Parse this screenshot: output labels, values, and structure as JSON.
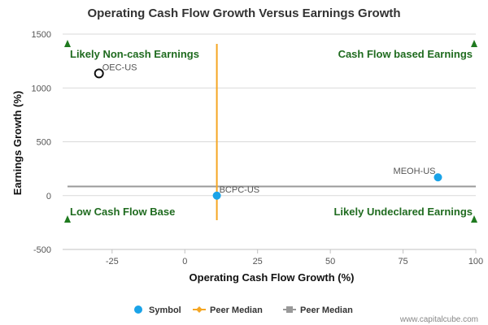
{
  "chart_data": {
    "type": "scatter",
    "title": "Operating Cash Flow Growth Versus Earnings Growth",
    "xlabel": "Operating Cash Flow Growth (%)",
    "ylabel": "Earnings Growth (%)",
    "xlim": [
      -42,
      100
    ],
    "ylim": [
      -500,
      1500
    ],
    "xticks": [
      -25,
      0,
      25,
      50,
      75,
      100
    ],
    "yticks": [
      -500,
      0,
      500,
      1000,
      1500
    ],
    "grid": "horizontal",
    "points": [
      {
        "label": "OEC-US",
        "x": -29.5,
        "y": 1135,
        "style": "hollow"
      },
      {
        "label": "BCPC-US",
        "x": 11,
        "y": 0,
        "style": "filled"
      },
      {
        "label": "MEOH-US",
        "x": 87,
        "y": 170,
        "style": "filled"
      }
    ],
    "peer_median_x": 11,
    "peer_median_y": 85,
    "quadrants": {
      "top_left": "Likely Non-cash Earnings",
      "top_right": "Cash Flow based Earnings",
      "bottom_left": "Low Cash Flow Base",
      "bottom_right": "Likely Undeclared Earnings"
    },
    "legend": {
      "placement": "bottom",
      "items": [
        {
          "name": "Symbol",
          "kind": "circle",
          "color": "#1aa3e8"
        },
        {
          "name": "Peer Median",
          "kind": "diamond-line",
          "color": "#f5a623"
        },
        {
          "name": "Peer Median",
          "kind": "square-line",
          "color": "#999999"
        }
      ]
    },
    "colors": {
      "symbol": "#1aa3e8",
      "median_x_line": "#f5a623",
      "median_y_line": "#999999",
      "quadrant_text": "#1f6b1f",
      "marker": "#1f7a1f",
      "grid": "#d9d9d9"
    }
  },
  "footer": {
    "credit": "www.capitalcube.com"
  }
}
